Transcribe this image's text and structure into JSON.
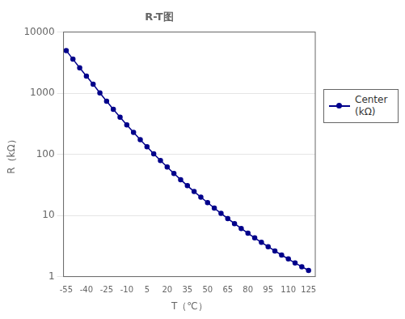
{
  "chart_data": {
    "type": "line",
    "title": "R-T图",
    "xlabel": "T（℃）",
    "ylabel": "R（kΩ）",
    "x": [
      -55,
      -50,
      -45,
      -40,
      -35,
      -30,
      -25,
      -20,
      -15,
      -10,
      -5,
      0,
      5,
      10,
      15,
      20,
      25,
      30,
      35,
      40,
      45,
      50,
      55,
      60,
      65,
      70,
      75,
      80,
      85,
      90,
      95,
      100,
      105,
      110,
      115,
      120,
      125
    ],
    "series": [
      {
        "name": "Center\n(kΩ)",
        "color": "#00008B",
        "marker": "o",
        "values": [
          4990,
          3600,
          2600,
          1900,
          1400,
          1010,
          740,
          546,
          406,
          304,
          229,
          174,
          133,
          102,
          79.4,
          62.0,
          48.7,
          38.5,
          30.7,
          24.6,
          19.9,
          16.2,
          13.2,
          10.8,
          8.9,
          7.36,
          6.12,
          5.12,
          4.3,
          3.63,
          3.08,
          2.63,
          2.25,
          1.94,
          1.67,
          1.45,
          1.26
        ]
      }
    ],
    "xlim": [
      -57,
      130
    ],
    "xticks": [
      -55,
      -40,
      -25,
      -10,
      5,
      20,
      35,
      50,
      65,
      80,
      95,
      110,
      125
    ],
    "ylim": [
      1,
      10000
    ],
    "yticks": [
      1,
      10,
      100,
      1000,
      10000
    ],
    "log": "y",
    "grid": "y",
    "legend": "right"
  }
}
